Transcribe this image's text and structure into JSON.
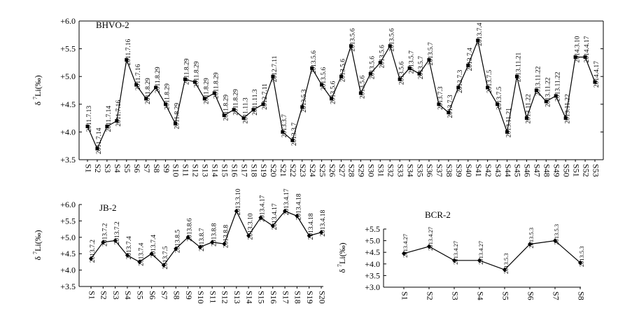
{
  "chart_data": [
    {
      "type": "line",
      "title": "BHVO-2",
      "ylabel": "δ 7Li(‰)",
      "ylim": [
        3.5,
        6.0
      ],
      "yticks": [
        3.5,
        4.0,
        4.5,
        5.0,
        5.5,
        6.0
      ],
      "ytick_labels": [
        "+3.5",
        "+4.0",
        "+4.5",
        "+5.0",
        "+5.5",
        "+6.0"
      ],
      "marker": "square",
      "categories": [
        "S1",
        "S2",
        "S3",
        "S4",
        "S5",
        "S6",
        "S7",
        "S8",
        "S9",
        "S10",
        "S11",
        "S12",
        "S13",
        "S14",
        "S15",
        "S16",
        "S17",
        "S18",
        "S19",
        "S20",
        "S21",
        "S22",
        "S23",
        "S24",
        "S25",
        "S26",
        "S27",
        "S28",
        "S29",
        "S30",
        "S31",
        "S32",
        "S33",
        "S34",
        "S35",
        "S36",
        "S37",
        "S38",
        "S39",
        "S40",
        "S41",
        "S42",
        "S43",
        "S44",
        "S45",
        "S46",
        "S47",
        "S48",
        "S49",
        "S50",
        "S51",
        "S52",
        "S53"
      ],
      "values": [
        4.1,
        3.7,
        4.1,
        4.2,
        5.3,
        4.85,
        4.6,
        4.8,
        4.5,
        4.15,
        4.95,
        4.9,
        4.6,
        4.7,
        4.3,
        4.4,
        4.25,
        4.4,
        4.5,
        5.0,
        4.0,
        3.85,
        4.45,
        5.15,
        4.85,
        4.6,
        5.0,
        5.55,
        4.7,
        5.05,
        5.25,
        5.55,
        4.95,
        5.15,
        5.05,
        5.3,
        4.5,
        4.35,
        4.8,
        5.2,
        5.65,
        4.8,
        4.5,
        4.0,
        5.0,
        4.25,
        4.75,
        4.55,
        4.65,
        4.25,
        5.35,
        5.35,
        4.9
      ],
      "point_labels": [
        "2011.7.13",
        "2011.7.14",
        "2011.7.14",
        "2011.7.16",
        "2011.7.16",
        "2011.7.16",
        "2011.8.29",
        "2011.8.29",
        "2011.8.29",
        "2011.8.29",
        "2011.8.29",
        "2011.8.29",
        "2011.8.29",
        "2011.8.29",
        "2011.8.29",
        "2011.8.29",
        "2011.11.3",
        "2011.11.3",
        "2012.7.11",
        "2012.7.11",
        "2013.3.7",
        "2013.3.7",
        "2013.5.3",
        "2013.5.6",
        "2013.5.6",
        "2013.5.6",
        "2013.5.6",
        "2013.5.6",
        "2013.5.6",
        "2013.5.6",
        "2013.5.6",
        "2013.5.6",
        "2013.5.6",
        "2013.5.7",
        "2013.5.7",
        "2013.5.7",
        "2013.7.3",
        "2013.7.3",
        "2013.7.3",
        "2013.7.4",
        "2013.7.4",
        "2013.7.5",
        "2013.7.5",
        "2013.11.21",
        "2013.11.21",
        "2013.11.22",
        "2013.11.22",
        "2013.11.22",
        "2013.11.22",
        "2013.11.22",
        "2014.3.10",
        "2014.4.17",
        "2014.4.17"
      ]
    },
    {
      "type": "line",
      "title": "JB-2",
      "ylabel": "δ 7Li(‰)",
      "ylim": [
        3.5,
        6.0
      ],
      "yticks": [
        3.5,
        4.0,
        4.5,
        5.0,
        5.5,
        6.0
      ],
      "ytick_labels": [
        "+3.5",
        "+4.0",
        "+4.5",
        "+5.0",
        "+5.5",
        "+6.0"
      ],
      "marker": "diamond",
      "categories": [
        "S1",
        "S2",
        "S3",
        "S4",
        "S5",
        "S6",
        "S7",
        "S8",
        "S9",
        "S10",
        "S11",
        "S12",
        "S13",
        "S14",
        "S15",
        "S16",
        "S17",
        "S18",
        "S19",
        "S20"
      ],
      "values": [
        4.35,
        4.85,
        4.9,
        4.45,
        4.25,
        4.5,
        4.15,
        4.65,
        5.0,
        4.7,
        4.85,
        4.8,
        5.8,
        5.05,
        5.6,
        5.35,
        5.8,
        5.65,
        5.05,
        5.15
      ],
      "point_labels": [
        "2013.7.2",
        "2013.7.2",
        "2013.7.2",
        "2013.7.4",
        "2013.7.4",
        "2013.7.4",
        "2013.7.5",
        "2013.8.5",
        "2013.8.6",
        "2013.8.7",
        "2013.8.8",
        "2013.8.8",
        "2013.3.10",
        "2013.3.10",
        "2013.4.17",
        "2013.4.17",
        "2013.4.17",
        "2013.4.18",
        "2013.4.18",
        "2013.4.18"
      ]
    },
    {
      "type": "line",
      "title": "BCR-2",
      "ylabel": "δ 7Li(‰)",
      "ylim": [
        3.0,
        5.5
      ],
      "yticks": [
        3.0,
        3.5,
        4.0,
        4.5,
        5.0,
        5.5
      ],
      "ytick_labels": [
        "+3.0",
        "+3.5",
        "+4.0",
        "+4.5",
        "+5.0",
        "+5.5"
      ],
      "marker": "diamond",
      "categories": [
        "S1",
        "S2",
        "S3",
        "S4",
        "S5",
        "S6",
        "S7",
        "S8"
      ],
      "values": [
        4.45,
        4.75,
        4.15,
        4.15,
        3.75,
        4.85,
        5.0,
        4.05
      ],
      "point_labels": [
        "2013.4.27",
        "2013.4.27",
        "2013.4.27",
        "2013.4.27",
        "2013.5.3",
        "2013.5.3",
        "2013.5.3",
        "2013.5.3"
      ]
    }
  ]
}
